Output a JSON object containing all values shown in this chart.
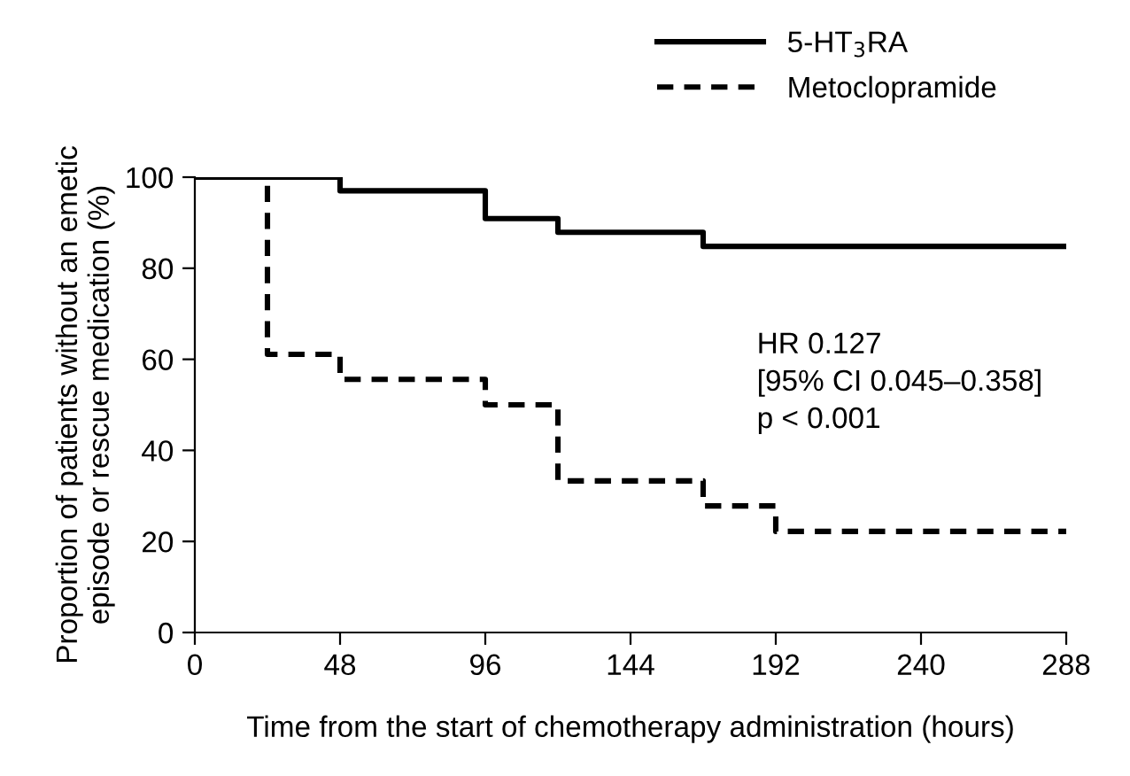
{
  "chart_data": {
    "type": "step",
    "xlabel": "Time from the start of chemotherapy administration (hours)",
    "ylabel": "Proportion of patients without an emetic\nepisode or rescue medication (%)",
    "series": [
      {
        "name": "5-HT$_{3}$RA",
        "color": "#000000",
        "line_style": "solid",
        "x": [
          0,
          48,
          96,
          120,
          168,
          288
        ],
        "values": [
          100,
          97.0,
          90.9,
          87.9,
          84.8,
          84.8
        ]
      },
      {
        "name": "Metoclopramide",
        "color": "#000000",
        "line_style": "dashed",
        "x": [
          0,
          24,
          48,
          96,
          120,
          168,
          192,
          288
        ],
        "values": [
          100,
          61.1,
          55.6,
          50.0,
          33.3,
          27.8,
          22.2,
          22.2
        ]
      }
    ],
    "annotations": [
      "HR 0.127",
      "[95% CI 0.045–0.358]",
      "p < 0.001"
    ],
    "xlim": [
      0,
      288
    ],
    "xticks": [
      0,
      48,
      96,
      144,
      192,
      240,
      288
    ],
    "ylim": [
      0,
      100
    ],
    "yticks": [
      0,
      20,
      40,
      60,
      80,
      100
    ],
    "grid": false,
    "legend": "top",
    "marker": "none"
  }
}
